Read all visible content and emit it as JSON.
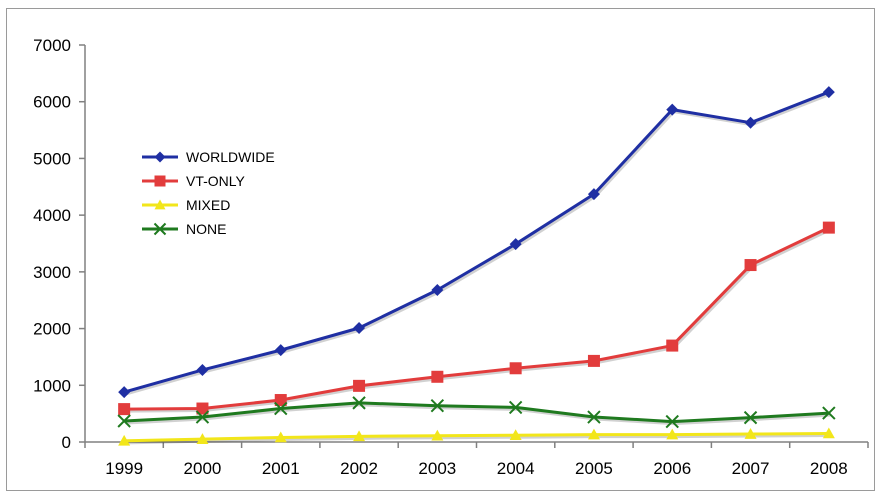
{
  "chart_data": {
    "type": "line",
    "title": "",
    "xlabel": "",
    "ylabel": "",
    "x": [
      "1999",
      "2000",
      "2001",
      "2002",
      "2003",
      "2004",
      "2005",
      "2006",
      "2007",
      "2008"
    ],
    "ylim": [
      0,
      7000
    ],
    "yticks": [
      0,
      1000,
      2000,
      3000,
      4000,
      5000,
      6000,
      7000
    ],
    "grid": "none",
    "legend_placement": "upper-left inside plot",
    "series": [
      {
        "name": "WORLDWIDE",
        "color": "#1f2fa3",
        "marker": "diamond",
        "values": [
          880,
          1270,
          1620,
          2010,
          2680,
          3490,
          4370,
          5860,
          5630,
          6170
        ]
      },
      {
        "name": "VT-ONLY",
        "color": "#e23c3c",
        "marker": "square",
        "values": [
          580,
          590,
          740,
          990,
          1150,
          1300,
          1430,
          1700,
          3120,
          3780
        ]
      },
      {
        "name": "MIXED",
        "color": "#f2e61a",
        "marker": "triangle",
        "values": [
          20,
          50,
          80,
          100,
          110,
          120,
          130,
          130,
          140,
          150
        ]
      },
      {
        "name": "NONE",
        "color": "#1f7a1f",
        "marker": "x",
        "values": [
          370,
          440,
          590,
          690,
          640,
          610,
          440,
          360,
          430,
          510
        ]
      }
    ]
  }
}
